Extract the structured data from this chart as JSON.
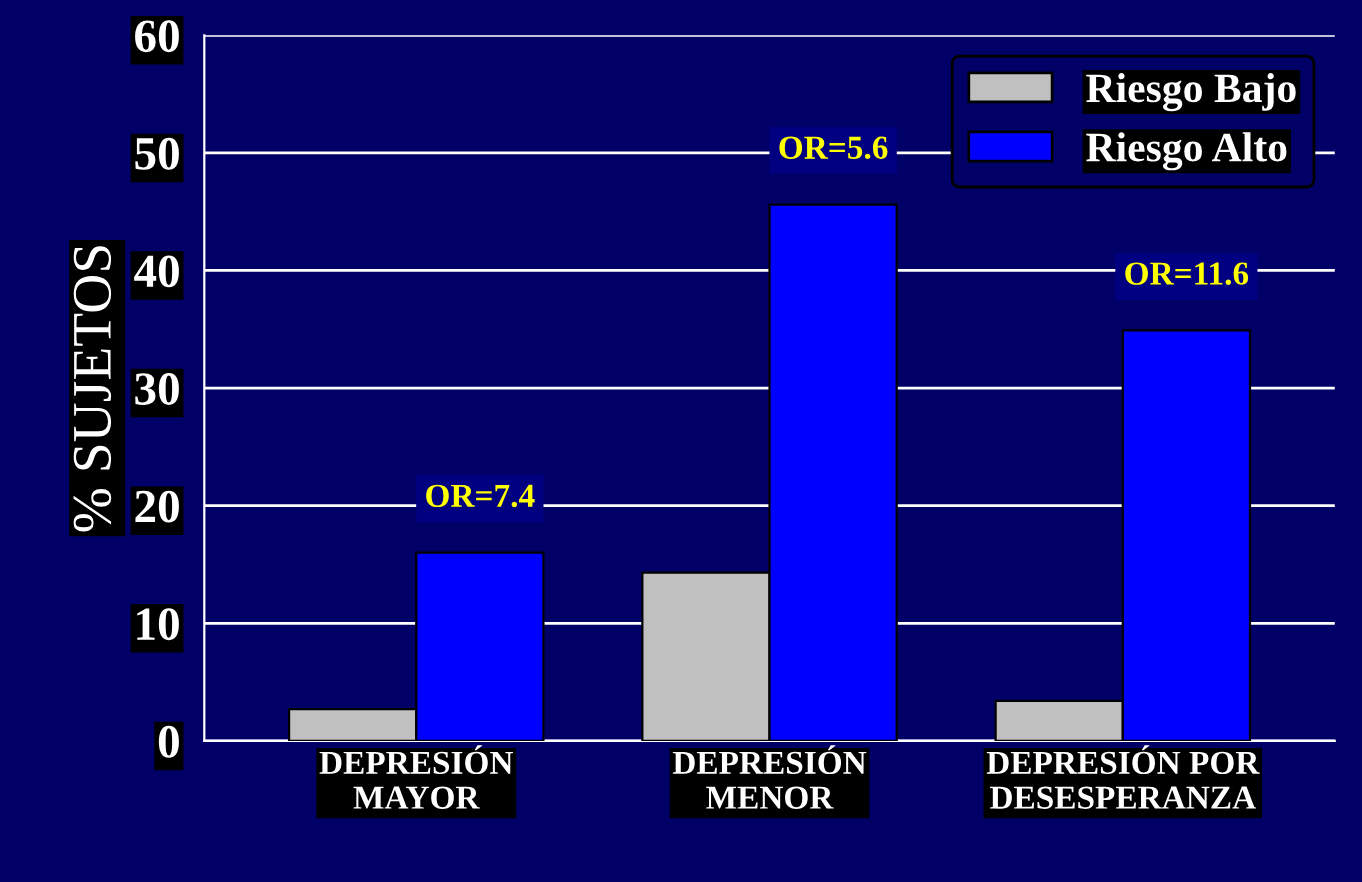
{
  "chart_data": {
    "type": "bar",
    "ylabel": "% SUJETOS",
    "categories": [
      "DEPRESIÓN\nMAYOR",
      "DEPRESIÓN\nMENOR",
      "DEPRESIÓN POR\nDESESPERANZA"
    ],
    "series": [
      {
        "name": "Riesgo Bajo",
        "color": "#c0c0c0",
        "values": [
          2.7,
          14.3,
          3.4
        ]
      },
      {
        "name": "Riesgo Alto",
        "color": "#0000ff",
        "values": [
          16,
          45.6,
          34.9
        ]
      }
    ],
    "ylim": [
      0,
      60
    ],
    "yticks": [
      0,
      10,
      20,
      30,
      40,
      50,
      60
    ],
    "grid": "y",
    "legend": "top right",
    "annotations": [
      {
        "text": "OR=7.4",
        "x": "DEPRESIÓN\nMAYOR",
        "y": 16
      },
      {
        "text": "OR=5.6",
        "x": "DEPRESIÓN\nMENOR",
        "y": 45.6
      },
      {
        "text": "OR=11.6",
        "x": "DEPRESIÓN POR\nDESESPERANZA",
        "y": 34.9
      }
    ]
  }
}
